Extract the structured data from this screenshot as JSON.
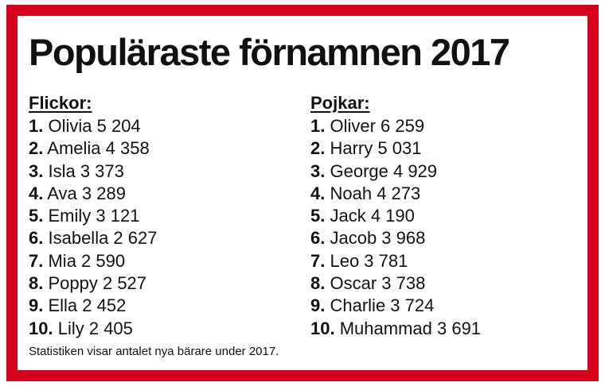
{
  "title": "Populäraste förnamnen 2017",
  "accent_color": "#d7001b",
  "girls": {
    "heading": "Flickor:",
    "items": [
      {
        "rank": "1.",
        "name": "Olivia 5 204"
      },
      {
        "rank": "2.",
        "name": "Amelia 4 358"
      },
      {
        "rank": "3.",
        "name": "Isla 3 373"
      },
      {
        "rank": "4.",
        "name": "Ava 3 289"
      },
      {
        "rank": "5.",
        "name": "Emily 3 121"
      },
      {
        "rank": "6.",
        "name": "Isabella 2 627"
      },
      {
        "rank": "7.",
        "name": "Mia 2 590"
      },
      {
        "rank": "8.",
        "name": "Poppy 2 527"
      },
      {
        "rank": "9.",
        "name": "Ella 2 452"
      },
      {
        "rank": "10.",
        "name": "Lily 2 405"
      }
    ]
  },
  "boys": {
    "heading": "Pojkar:",
    "items": [
      {
        "rank": "1.",
        "name": "Oliver 6 259"
      },
      {
        "rank": "2.",
        "name": "Harry 5 031"
      },
      {
        "rank": "3.",
        "name": "George 4 929"
      },
      {
        "rank": "4.",
        "name": "Noah 4 273"
      },
      {
        "rank": "5.",
        "name": "Jack 4 190"
      },
      {
        "rank": "6.",
        "name": "Jacob 3 968"
      },
      {
        "rank": "7.",
        "name": "Leo 3 781"
      },
      {
        "rank": "8.",
        "name": "Oscar 3 738"
      },
      {
        "rank": "9.",
        "name": "Charlie 3 724"
      },
      {
        "rank": "10.",
        "name": "Muhammad 3 691"
      }
    ]
  },
  "footer": "Statistiken visar antalet nya bärare under 2017."
}
